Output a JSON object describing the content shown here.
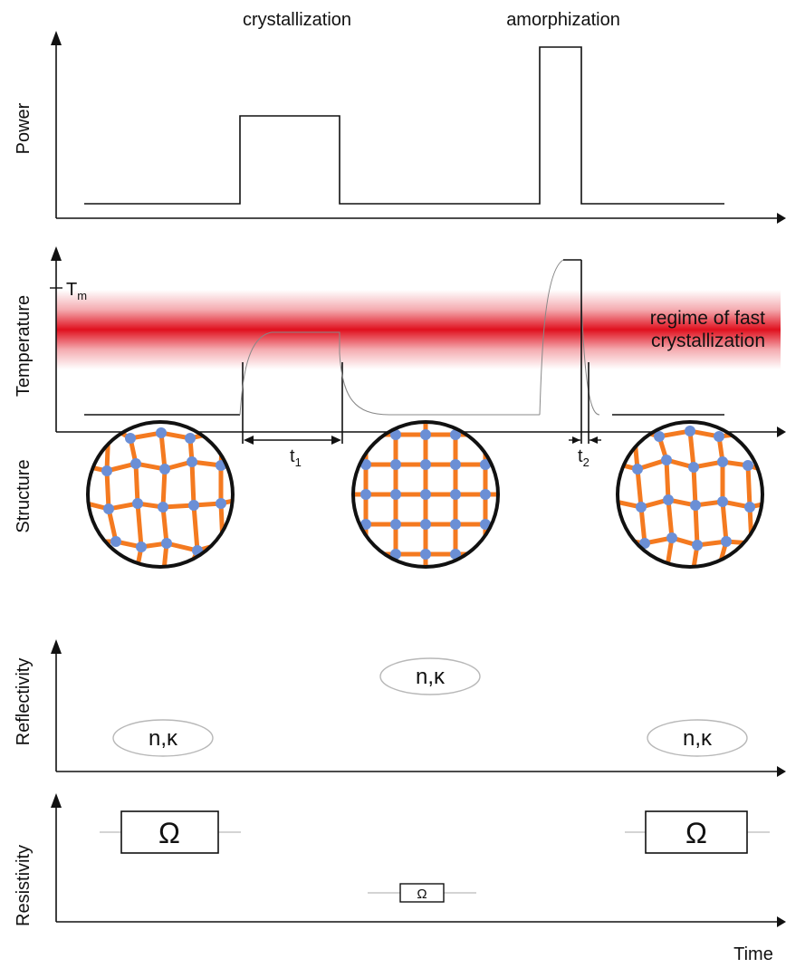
{
  "labels": {
    "crystallization": "crystallization",
    "amorphization": "amorphization",
    "power": "Power",
    "temperature": "Temperature",
    "tm_main": "T",
    "tm_sub": "m",
    "regime_line1": "regime of fast",
    "regime_line2": "crystallization",
    "t1_main": "t",
    "t1_sub": "1",
    "t2_main": "t",
    "t2_sub": "2",
    "structure": "Structure",
    "reflectivity": "Reflectivity",
    "nk": "n,κ",
    "resistivity": "Resistivity",
    "ohm": "Ω",
    "time": "Time"
  },
  "colors": {
    "axis": "#111111",
    "band_core": "#e0101e",
    "bond": "#f47a20",
    "atom": "#6b8fd6",
    "ellipse_stroke": "#b8b8b8"
  }
}
